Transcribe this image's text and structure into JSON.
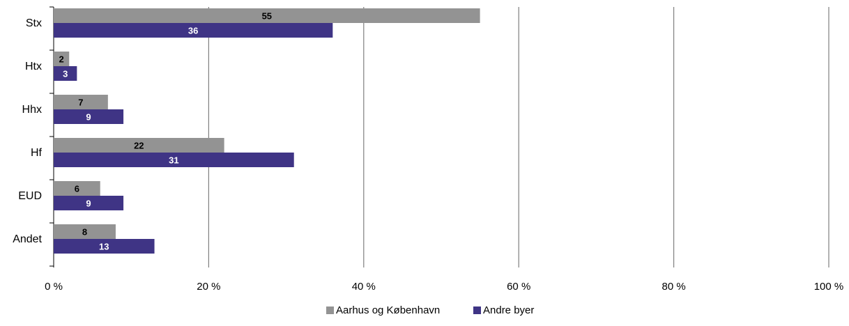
{
  "chart_data": {
    "type": "bar",
    "orientation": "horizontal",
    "categories": [
      "Stx",
      "Htx",
      "Hhx",
      "Hf",
      "EUD",
      "Andet"
    ],
    "series": [
      {
        "name": "Aarhus og København",
        "values": [
          55,
          2,
          7,
          22,
          6,
          8
        ],
        "color": "#939393",
        "label_color": "#000000"
      },
      {
        "name": "Andre byer",
        "values": [
          36,
          3,
          9,
          31,
          9,
          13
        ],
        "color": "#3f3485",
        "label_color": "#ffffff"
      }
    ],
    "xlim": [
      0,
      100
    ],
    "xticks": [
      0,
      20,
      40,
      60,
      80,
      100
    ],
    "xtick_labels": [
      "0 %",
      "20 %",
      "40 %",
      "60 %",
      "80 %",
      "100 %"
    ],
    "grid": "vertical",
    "legend_position": "bottom-center",
    "title": "",
    "xlabel": "",
    "ylabel": ""
  }
}
